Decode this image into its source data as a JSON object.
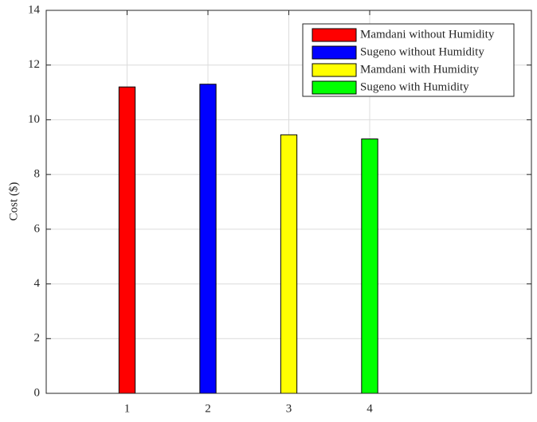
{
  "chart_data": {
    "type": "bar",
    "ylabel": "Cost ($)",
    "x": [
      1,
      2,
      3,
      4
    ],
    "series": [
      {
        "name": "Mamdani without Humidity",
        "color": "#ff0000",
        "values": [
          11.2,
          null,
          null,
          null
        ]
      },
      {
        "name": "Sugeno without Humidity",
        "color": "#0000ff",
        "values": [
          null,
          11.3,
          null,
          null
        ]
      },
      {
        "name": "Mamdani with Humidity",
        "color": "#ffff00",
        "values": [
          null,
          null,
          9.45,
          null
        ]
      },
      {
        "name": "Sugeno with Humidity",
        "color": "#00ff00",
        "values": [
          null,
          null,
          null,
          9.3
        ]
      }
    ],
    "xlim": [
      0,
      6
    ],
    "xticks": [
      1,
      2,
      3,
      4
    ],
    "ylim": [
      0,
      14
    ],
    "yticks": [
      0,
      2,
      4,
      6,
      8,
      10,
      12,
      14
    ],
    "grid": true,
    "legend": "upper right"
  }
}
